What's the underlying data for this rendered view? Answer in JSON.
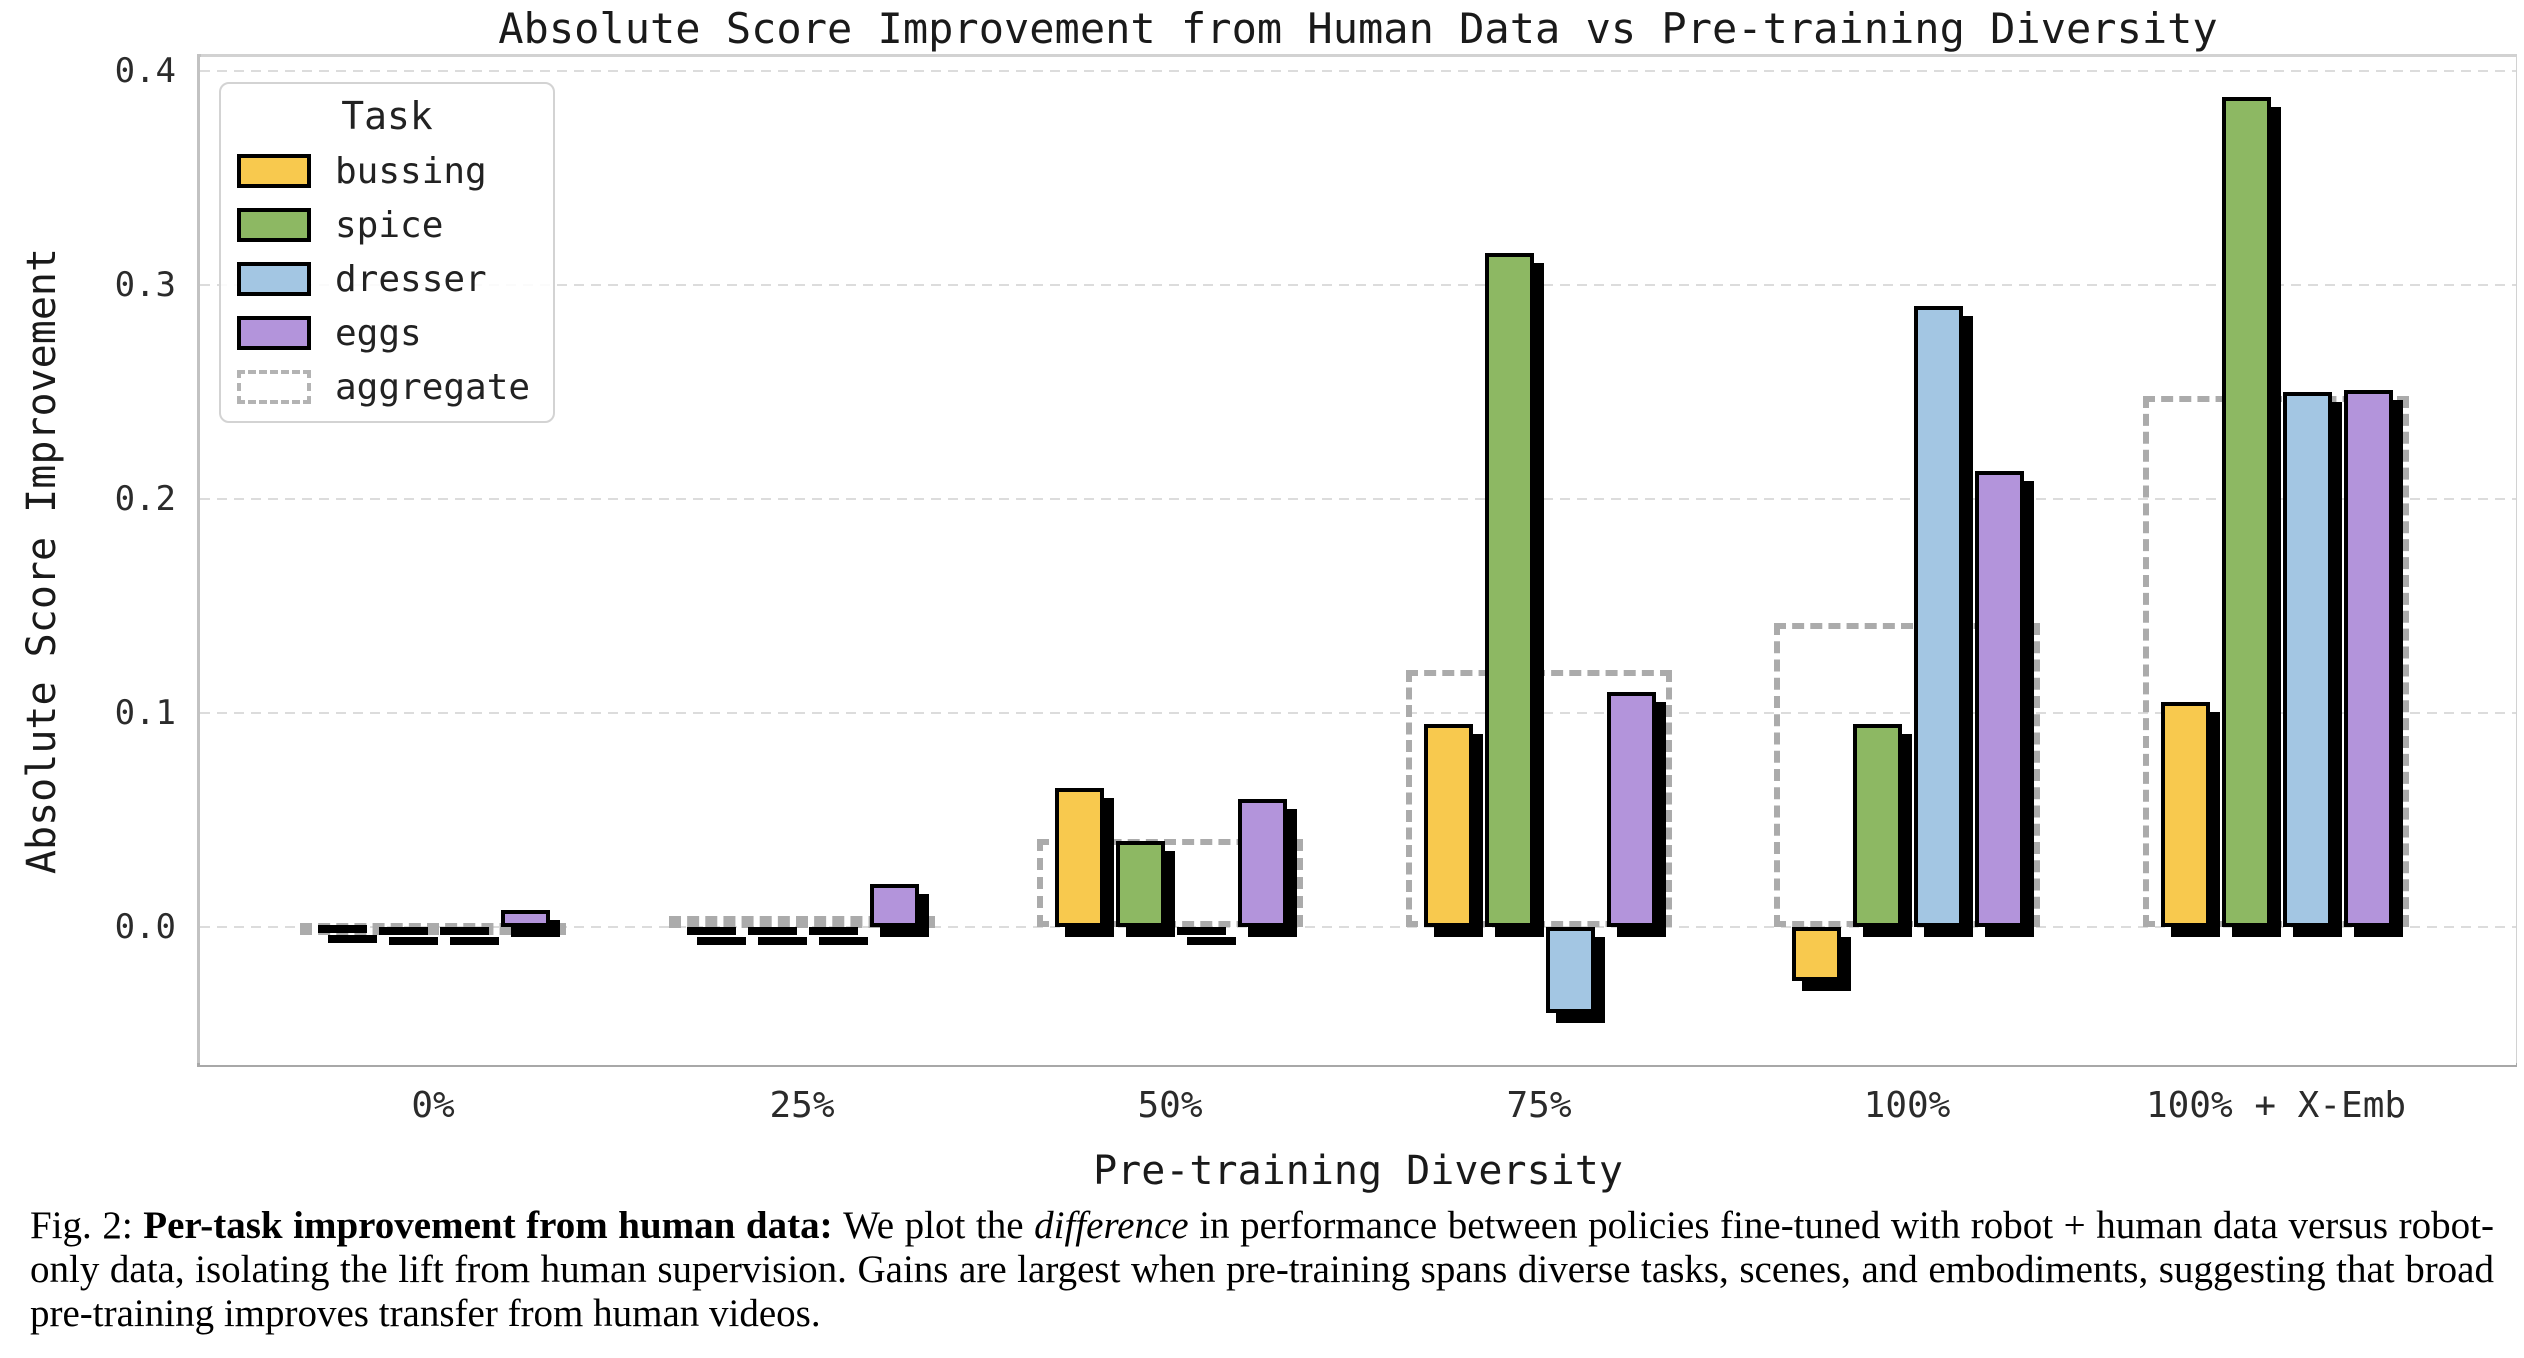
{
  "caption": {
    "fig_label": "Fig. 2: ",
    "bold": "Per-task improvement from human data: ",
    "body_pre_italic": "We plot the ",
    "italic": "difference",
    "body_post_italic": " in performance between policies fine-tuned with robot + human data versus robot-only data, isolating the lift from human supervision. Gains are largest when pre-training spans diverse tasks, scenes, and embodiments, suggesting that broad pre-training improves transfer from human videos."
  },
  "chart_data": {
    "type": "bar",
    "title": "Absolute Score Improvement from Human Data vs Pre-training Diversity",
    "xlabel": "Pre-training Diversity",
    "ylabel": "Absolute Score Improvement",
    "categories": [
      "0%",
      "25%",
      "50%",
      "75%",
      "100%",
      "100% + X-Emb"
    ],
    "yticks": [
      0.0,
      0.1,
      0.2,
      0.3,
      0.4
    ],
    "ytick_labels": [
      "0.0",
      "0.1",
      "0.2",
      "0.3",
      "0.4"
    ],
    "ylim": [
      -0.065,
      0.41
    ],
    "grid": "horizontal-dashed",
    "legend": {
      "title": "Task",
      "position": "upper-left",
      "entries": [
        "bussing",
        "spice",
        "dresser",
        "eggs",
        "aggregate"
      ]
    },
    "series": [
      {
        "name": "bussing",
        "color": "#F8C94E",
        "values": [
          0.001,
          -0.001,
          0.065,
          0.095,
          -0.025,
          0.105
        ]
      },
      {
        "name": "spice",
        "color": "#8DB863",
        "values": [
          -0.001,
          -0.002,
          0.04,
          0.315,
          0.095,
          0.388
        ]
      },
      {
        "name": "dresser",
        "color": "#A3C6E3",
        "values": [
          -0.001,
          -0.001,
          -0.002,
          -0.04,
          0.29,
          0.25
        ]
      },
      {
        "name": "eggs",
        "color": "#B394DB",
        "values": [
          0.008,
          0.02,
          0.06,
          0.11,
          0.213,
          0.251
        ]
      }
    ],
    "aggregate": {
      "name": "aggregate",
      "style": "dashed-outline",
      "color": "#ABABAB",
      "values": [
        0.002,
        0.005,
        0.041,
        0.12,
        0.142,
        0.248
      ]
    },
    "style_notes": {
      "bar_outline": "#000000",
      "bar_shadow": "#000000",
      "gridline_color": "#dcdcdc",
      "background": "#ffffff"
    }
  }
}
